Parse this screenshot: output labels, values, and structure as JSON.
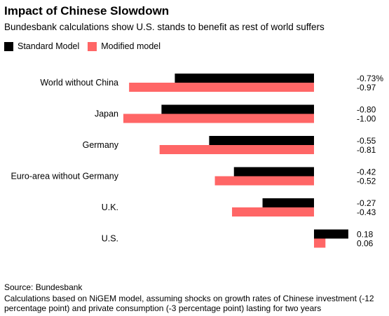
{
  "header": {
    "title": "Impact of Chinese Slowdown",
    "subtitle": "Bundesbank calculations show U.S. stands to benefit as rest of world suffers"
  },
  "footer": {
    "source": "Source: Bundesbank",
    "note": "Calculations based on NiGEM model, assuming shocks on growth rates of Chinese investment (-12 percentage point) and private consumption (-3 percentage point) lasting for two years"
  },
  "chart_data": {
    "type": "bar",
    "orientation": "horizontal",
    "title": "Impact of Chinese Slowdown",
    "subtitle": "Bundesbank calculations show U.S. stands to benefit as rest of world suffers",
    "categories": [
      "World without China",
      "Japan",
      "Germany",
      "Euro-area without Germany",
      "U.K.",
      "U.S."
    ],
    "series": [
      {
        "name": "Standard Model",
        "color": "#000000",
        "values": [
          -0.73,
          -0.8,
          -0.55,
          -0.42,
          -0.27,
          0.18
        ],
        "labels": [
          "-0.73%",
          "-0.80",
          "-0.55",
          "-0.42",
          "-0.27",
          "0.18"
        ]
      },
      {
        "name": "Modified model",
        "color": "#ff6666",
        "values": [
          -0.97,
          -1.0,
          -0.81,
          -0.52,
          -0.43,
          0.06
        ],
        "labels": [
          "-0.97",
          "-1.00",
          "-0.81",
          "-0.52",
          "-0.43",
          "0.06"
        ]
      }
    ],
    "xlim": [
      -1.0,
      0.18
    ],
    "legend_position": "top-left",
    "grid": false
  }
}
